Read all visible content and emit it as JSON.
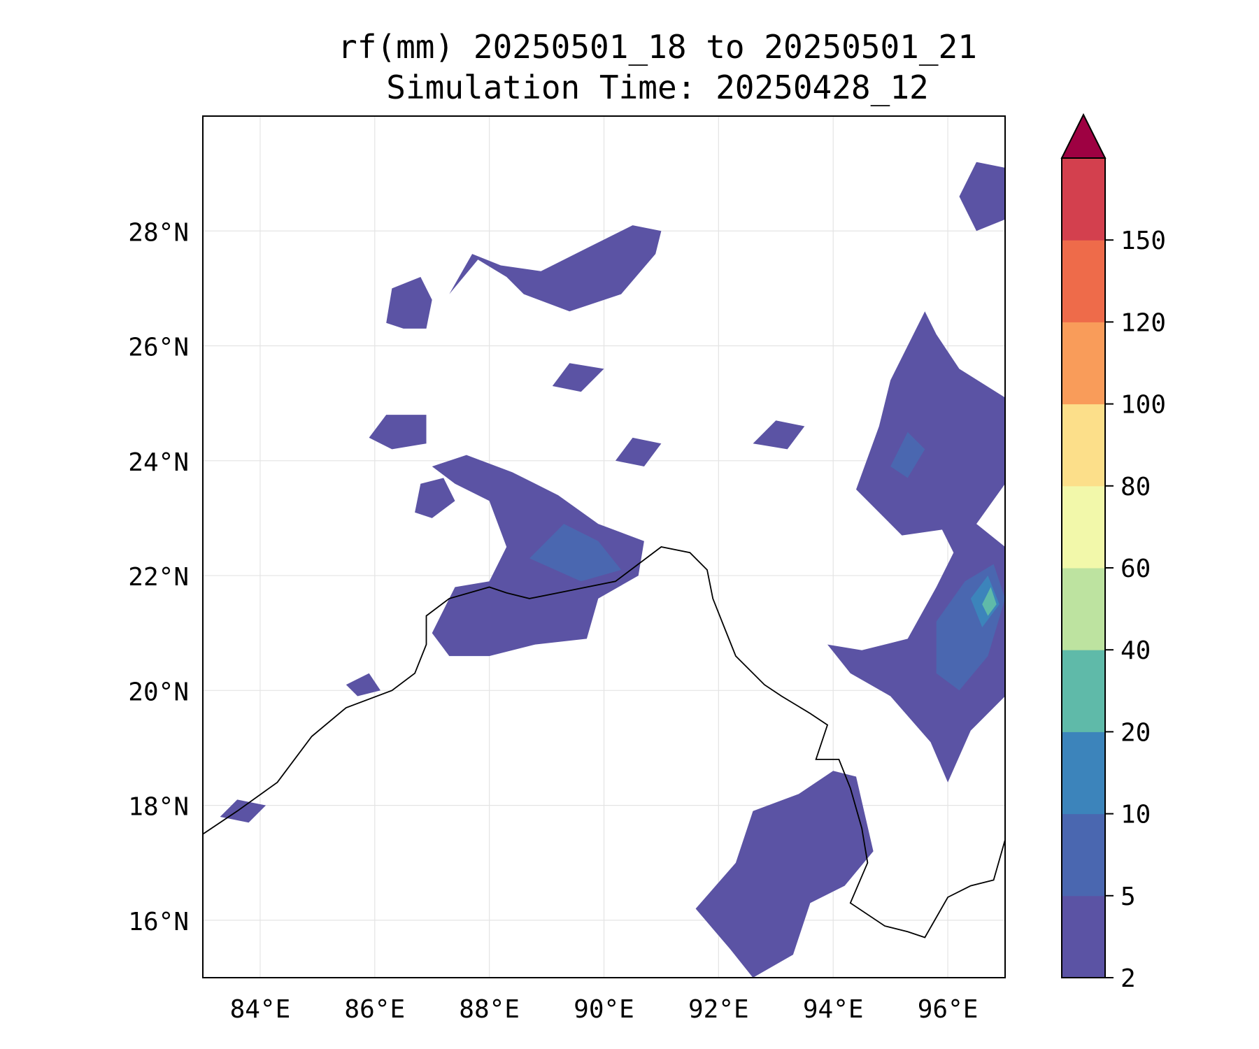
{
  "title": {
    "line1": "rf(mm) 20250501_18 to 20250501_21",
    "line2": "Simulation Time: 20250428_12"
  },
  "map": {
    "lon_range": [
      83,
      97
    ],
    "lat_range": [
      15,
      30
    ],
    "lat_ticks": [
      {
        "value": 16,
        "label": "16°N"
      },
      {
        "value": 18,
        "label": "18°N"
      },
      {
        "value": 20,
        "label": "20°N"
      },
      {
        "value": 22,
        "label": "22°N"
      },
      {
        "value": 24,
        "label": "24°N"
      },
      {
        "value": 26,
        "label": "26°N"
      },
      {
        "value": 28,
        "label": "28°N"
      }
    ],
    "lon_ticks": [
      {
        "value": 84,
        "label": "84°E"
      },
      {
        "value": 86,
        "label": "86°E"
      },
      {
        "value": 88,
        "label": "88°E"
      },
      {
        "value": 90,
        "label": "90°E"
      },
      {
        "value": 92,
        "label": "92°E"
      },
      {
        "value": 94,
        "label": "94°E"
      },
      {
        "value": 96,
        "label": "96°E"
      }
    ],
    "gridlines": true,
    "rain_regions": [
      {
        "name": "bay-north-coast",
        "points": [
          [
            87.0,
            21.0
          ],
          [
            87.4,
            21.8
          ],
          [
            88.0,
            21.9
          ],
          [
            88.3,
            22.5
          ],
          [
            88.0,
            23.3
          ],
          [
            87.4,
            23.6
          ],
          [
            87.0,
            23.9
          ],
          [
            87.6,
            24.1
          ],
          [
            88.4,
            23.8
          ],
          [
            89.2,
            23.4
          ],
          [
            89.9,
            22.9
          ],
          [
            90.7,
            22.6
          ],
          [
            90.6,
            22.0
          ],
          [
            89.9,
            21.6
          ],
          [
            89.7,
            20.9
          ],
          [
            88.8,
            20.8
          ],
          [
            88.0,
            20.6
          ],
          [
            87.3,
            20.6
          ]
        ],
        "level": 1
      },
      {
        "name": "bay-north-core",
        "points": [
          [
            88.7,
            22.3
          ],
          [
            89.3,
            22.9
          ],
          [
            89.9,
            22.6
          ],
          [
            90.3,
            22.1
          ],
          [
            89.6,
            21.9
          ]
        ],
        "level": 2
      },
      {
        "name": "west-bengal-scatter",
        "points": [
          [
            86.7,
            23.1
          ],
          [
            86.8,
            23.6
          ],
          [
            87.2,
            23.7
          ],
          [
            87.4,
            23.3
          ],
          [
            87.0,
            23.0
          ]
        ],
        "level": 1
      },
      {
        "name": "jharkhand-patch",
        "points": [
          [
            85.9,
            24.4
          ],
          [
            86.2,
            24.8
          ],
          [
            86.9,
            24.8
          ],
          [
            86.9,
            24.3
          ],
          [
            86.3,
            24.2
          ]
        ],
        "level": 1
      },
      {
        "name": "nepal-east",
        "points": [
          [
            86.2,
            26.4
          ],
          [
            86.3,
            27.0
          ],
          [
            86.8,
            27.2
          ],
          [
            87.0,
            26.8
          ],
          [
            86.9,
            26.3
          ],
          [
            86.5,
            26.3
          ]
        ],
        "level": 1
      },
      {
        "name": "nepal-bhutan-band",
        "points": [
          [
            87.3,
            26.9
          ],
          [
            87.8,
            27.5
          ],
          [
            88.3,
            27.2
          ],
          [
            88.6,
            26.9
          ],
          [
            89.4,
            26.6
          ],
          [
            90.3,
            26.9
          ],
          [
            90.9,
            27.6
          ],
          [
            91.0,
            28.0
          ],
          [
            90.5,
            28.1
          ],
          [
            89.7,
            27.7
          ],
          [
            88.9,
            27.3
          ],
          [
            88.2,
            27.4
          ],
          [
            87.7,
            27.6
          ]
        ],
        "level": 1
      },
      {
        "name": "northeast-india-band",
        "points": [
          [
            94.4,
            23.5
          ],
          [
            94.8,
            24.6
          ],
          [
            95.0,
            25.4
          ],
          [
            95.3,
            26.0
          ],
          [
            95.6,
            26.6
          ],
          [
            95.8,
            26.2
          ],
          [
            96.2,
            25.6
          ],
          [
            97.0,
            25.1
          ],
          [
            97.0,
            23.6
          ],
          [
            96.5,
            22.9
          ],
          [
            97.0,
            22.5
          ],
          [
            97.0,
            19.9
          ],
          [
            96.4,
            19.3
          ],
          [
            96.0,
            18.4
          ],
          [
            95.7,
            19.1
          ],
          [
            95.0,
            19.9
          ],
          [
            94.3,
            20.3
          ],
          [
            93.9,
            20.8
          ],
          [
            94.5,
            20.7
          ],
          [
            95.3,
            20.9
          ],
          [
            95.8,
            21.8
          ],
          [
            96.1,
            22.4
          ],
          [
            95.9,
            22.8
          ],
          [
            95.2,
            22.7
          ]
        ],
        "level": 1
      },
      {
        "name": "myanmar-core",
        "points": [
          [
            95.8,
            21.2
          ],
          [
            96.3,
            21.9
          ],
          [
            96.8,
            22.2
          ],
          [
            97.0,
            21.6
          ],
          [
            96.7,
            20.6
          ],
          [
            96.2,
            20.0
          ],
          [
            95.8,
            20.3
          ]
        ],
        "level": 2
      },
      {
        "name": "myanmar-peak",
        "points": [
          [
            96.4,
            21.6
          ],
          [
            96.7,
            22.0
          ],
          [
            96.9,
            21.5
          ],
          [
            96.6,
            21.1
          ]
        ],
        "level": 3
      },
      {
        "name": "myanmar-peak-inner",
        "points": [
          [
            96.6,
            21.5
          ],
          [
            96.75,
            21.8
          ],
          [
            96.85,
            21.5
          ],
          [
            96.7,
            21.3
          ]
        ],
        "level": 4
      },
      {
        "name": "rakhine-coast",
        "points": [
          [
            91.6,
            16.2
          ],
          [
            92.3,
            17.0
          ],
          [
            92.6,
            17.9
          ],
          [
            93.4,
            18.2
          ],
          [
            94.0,
            18.6
          ],
          [
            94.4,
            18.5
          ],
          [
            94.7,
            17.2
          ],
          [
            94.2,
            16.6
          ],
          [
            93.6,
            16.3
          ],
          [
            93.3,
            15.4
          ],
          [
            92.6,
            15.0
          ],
          [
            92.2,
            15.5
          ]
        ],
        "level": 1
      },
      {
        "name": "yunnan-corner",
        "points": [
          [
            96.2,
            28.6
          ],
          [
            96.5,
            29.2
          ],
          [
            97.0,
            29.1
          ],
          [
            97.0,
            28.2
          ],
          [
            96.5,
            28.0
          ]
        ],
        "level": 1
      },
      {
        "name": "myanmar-inner-core",
        "points": [
          [
            95.0,
            23.9
          ],
          [
            95.3,
            24.5
          ],
          [
            95.6,
            24.2
          ],
          [
            95.3,
            23.7
          ]
        ],
        "level": 2
      },
      {
        "name": "chennai-coast",
        "points": [
          [
            83.3,
            17.8
          ],
          [
            83.6,
            18.1
          ],
          [
            84.1,
            18.0
          ],
          [
            83.8,
            17.7
          ]
        ],
        "level": 1
      },
      {
        "name": "odisha-blob",
        "points": [
          [
            85.5,
            20.1
          ],
          [
            85.9,
            20.3
          ],
          [
            86.1,
            20.0
          ],
          [
            85.7,
            19.9
          ]
        ],
        "level": 1
      },
      {
        "name": "meghalaya-blob",
        "points": [
          [
            90.2,
            24.0
          ],
          [
            90.5,
            24.4
          ],
          [
            91.0,
            24.3
          ],
          [
            90.7,
            23.9
          ]
        ],
        "level": 1
      },
      {
        "name": "assam-blob",
        "points": [
          [
            92.6,
            24.3
          ],
          [
            93.0,
            24.7
          ],
          [
            93.5,
            24.6
          ],
          [
            93.2,
            24.2
          ]
        ],
        "level": 1
      },
      {
        "name": "bihar-blob",
        "points": [
          [
            89.1,
            25.3
          ],
          [
            89.4,
            25.7
          ],
          [
            90.0,
            25.6
          ],
          [
            89.6,
            25.2
          ]
        ],
        "level": 1
      }
    ]
  },
  "colorbar": {
    "ticks": [
      "2",
      "5",
      "10",
      "20",
      "40",
      "60",
      "80",
      "100",
      "120",
      "150"
    ],
    "colors": [
      "#5b53a4",
      "#4a67b0",
      "#3c84bb",
      "#5fbaa9",
      "#bde3a0",
      "#f2f8aa",
      "#fcdf8a",
      "#f99c5a",
      "#ee6b4a",
      "#d3404e"
    ],
    "extend_color": "#9e0142"
  },
  "boundaries": {
    "coast": [
      [
        83.0,
        17.5
      ],
      [
        83.6,
        17.9
      ],
      [
        84.3,
        18.4
      ],
      [
        84.9,
        19.2
      ],
      [
        85.5,
        19.7
      ],
      [
        86.3,
        20.0
      ],
      [
        86.7,
        20.3
      ],
      [
        86.9,
        20.8
      ],
      [
        86.9,
        21.3
      ],
      [
        87.3,
        21.6
      ],
      [
        88.0,
        21.8
      ],
      [
        88.3,
        21.7
      ],
      [
        88.7,
        21.6
      ],
      [
        89.2,
        21.7
      ],
      [
        89.7,
        21.8
      ],
      [
        90.2,
        21.9
      ],
      [
        90.6,
        22.2
      ],
      [
        91.0,
        22.5
      ],
      [
        91.5,
        22.4
      ],
      [
        91.8,
        22.1
      ],
      [
        91.9,
        21.6
      ],
      [
        92.1,
        21.1
      ],
      [
        92.3,
        20.6
      ],
      [
        92.8,
        20.1
      ],
      [
        93.1,
        19.9
      ],
      [
        93.6,
        19.6
      ],
      [
        93.9,
        19.4
      ],
      [
        93.7,
        18.8
      ],
      [
        94.1,
        18.8
      ],
      [
        94.3,
        18.3
      ],
      [
        94.5,
        17.6
      ],
      [
        94.6,
        17.0
      ],
      [
        94.3,
        16.3
      ],
      [
        94.9,
        15.9
      ],
      [
        95.3,
        15.8
      ],
      [
        95.6,
        15.7
      ],
      [
        96.0,
        16.4
      ],
      [
        96.4,
        16.6
      ],
      [
        96.8,
        16.7
      ],
      [
        97.0,
        17.4
      ]
    ]
  }
}
